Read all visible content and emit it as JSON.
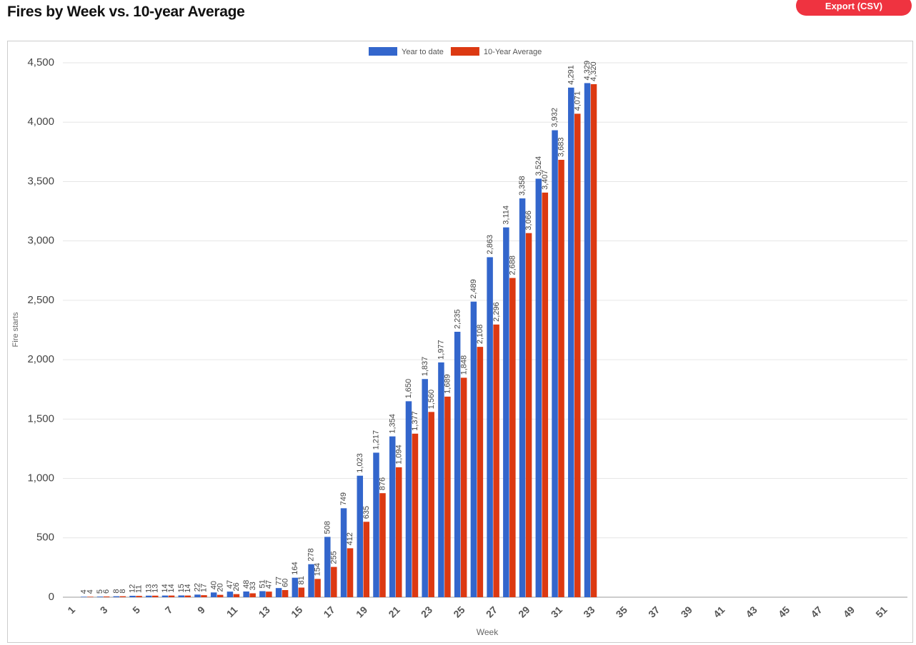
{
  "export_label": "Export (CSV)",
  "chart_data": {
    "type": "bar",
    "title": "Fires by Week vs. 10-year Average",
    "x_label": "Week",
    "y_label": "Fire starts",
    "categories": [
      1,
      null,
      3,
      null,
      5,
      null,
      7,
      null,
      9,
      null,
      11,
      null,
      13,
      null,
      15,
      null,
      17,
      null,
      19,
      null,
      21,
      null,
      23,
      null,
      25,
      null,
      27,
      null,
      29,
      null,
      31,
      null,
      33,
      null,
      35,
      null,
      37,
      null,
      39,
      null,
      41,
      null,
      43,
      null,
      45,
      null,
      47,
      null,
      49,
      null,
      51,
      null
    ],
    "series": [
      {
        "name": "Year to date",
        "color": "#3366cc",
        "values": [
          null,
          4,
          5,
          8,
          12,
          13,
          14,
          15,
          22,
          40,
          47,
          48,
          51,
          77,
          164,
          278,
          508,
          749,
          1023,
          1217,
          1354,
          1650,
          1837,
          1977,
          2235,
          2489,
          2863,
          3114,
          3358,
          3524,
          3932,
          4291,
          4329,
          null,
          null,
          null,
          null,
          null,
          null,
          null,
          null,
          null,
          null,
          null,
          null,
          null,
          null,
          null,
          null,
          null,
          null,
          null
        ],
        "value_labels": [
          null,
          "4",
          "5",
          "8",
          "12",
          "13",
          "14",
          "15",
          "22",
          "40",
          "47",
          "48",
          "51",
          "77",
          "164",
          "278",
          "508",
          "749",
          "1,023",
          "1,217",
          "1,354",
          "1,650",
          "1,837",
          "1,977",
          "2,235",
          "2,489",
          "2,863",
          "3,114",
          "3,358",
          "3,524",
          "3,932",
          "4,291",
          "4,329",
          null,
          null,
          null,
          null,
          null,
          null,
          null,
          null,
          null,
          null,
          null,
          null,
          null,
          null,
          null,
          null,
          null,
          null,
          null
        ]
      },
      {
        "name": "10-Year Average",
        "color": "#dc3912",
        "values": [
          null,
          4,
          6,
          8,
          11,
          13,
          14,
          14,
          17,
          20,
          26,
          33,
          47,
          60,
          81,
          154,
          255,
          412,
          635,
          876,
          1094,
          1377,
          1560,
          1689,
          1848,
          2108,
          2296,
          2688,
          3066,
          3407,
          3683,
          4071,
          4320,
          null,
          null,
          null,
          null,
          null,
          null,
          null,
          null,
          null,
          null,
          null,
          null,
          null,
          null,
          null,
          null,
          null,
          null,
          null
        ],
        "value_labels": [
          null,
          "4",
          "6",
          "8",
          "11",
          "13",
          "14",
          "14",
          "17",
          "20",
          "26",
          "33",
          "47",
          "60",
          "81",
          "154",
          "255",
          "412",
          "635",
          "876",
          "1,094",
          "1,377",
          "1,560",
          "1,689",
          "1,848",
          "2,108",
          "2,296",
          "2,688",
          "3,066",
          "3,407",
          "3,683",
          "4,071",
          "4,320",
          null,
          null,
          null,
          null,
          null,
          null,
          null,
          null,
          null,
          null,
          null,
          null,
          null,
          null,
          null,
          null,
          null,
          null,
          null
        ]
      }
    ],
    "ylim": [
      0,
      4500
    ],
    "yticks": [
      0,
      500,
      {
        "value": 1000,
        "label": "1,000"
      },
      {
        "value": 1500,
        "label": "1,500"
      },
      {
        "value": 2000,
        "label": "2,000"
      },
      {
        "value": 2500,
        "label": "2,500"
      },
      {
        "value": 3000,
        "label": "3,000"
      },
      {
        "value": 3500,
        "label": "3,500"
      },
      {
        "value": 4000,
        "label": "4,000"
      },
      {
        "value": 4500,
        "label": "4,500"
      }
    ],
    "grid": true,
    "legend": "top"
  }
}
